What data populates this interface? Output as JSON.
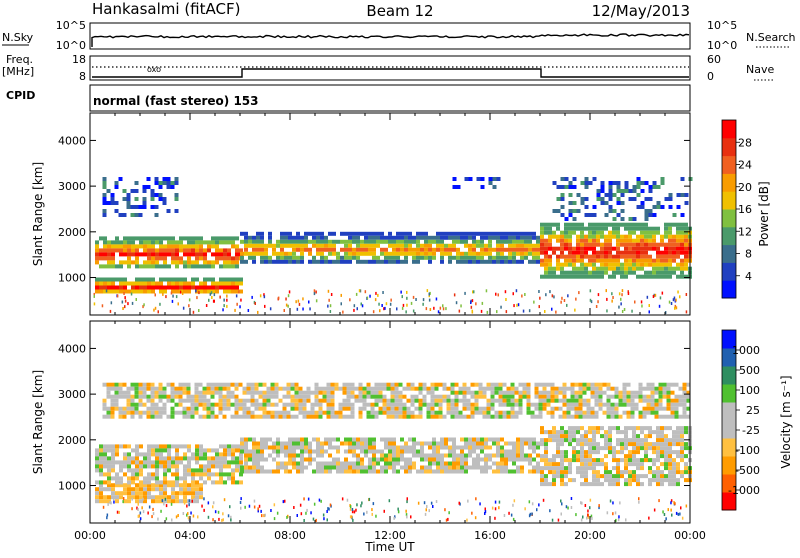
{
  "header": {
    "station": "Hankasalmi (fitACF)",
    "beam": "Beam 12",
    "date": "12/May/2013"
  },
  "top_panels": {
    "nsky_label": "N.Sky",
    "nsky_ticks": [
      "10^5",
      "10^0"
    ],
    "nsearch_label": "N.Search",
    "nsearch_ticks": [
      "10^5",
      "10^0"
    ],
    "freq_label": "Freq.",
    "freq_unit": "[MHz]",
    "freq_ticks": [
      "18",
      "8"
    ],
    "nave_label": "Nave",
    "nave_ticks": [
      "60",
      "0"
    ],
    "cpid_label": "CPID",
    "cpid_text": "normal (fast stereo) 153"
  },
  "chart_data": [
    {
      "type": "heatmap",
      "name": "power",
      "ylabel": "Slant Range [km]",
      "yticks": [
        "1000",
        "2000",
        "3000",
        "4000"
      ],
      "ylim": [
        180,
        4600
      ],
      "xlim": [
        0,
        24
      ],
      "colorbar": {
        "label": "Power [dB]",
        "ticks": [
          "4",
          "8",
          "12",
          "16",
          "20",
          "24",
          "28"
        ],
        "colors": [
          "#0010ff",
          "#2040c0",
          "#3a6e8c",
          "#4a9a6a",
          "#80c040",
          "#f0c000",
          "#f89c00",
          "#f06020",
          "#e83010",
          "#ff0000"
        ]
      },
      "echo_bands": [
        {
          "t0": 0.2,
          "t1": 6.0,
          "r0": 650,
          "r1": 1000,
          "level": "strong"
        },
        {
          "t0": 0.2,
          "t1": 6.0,
          "r0": 1200,
          "r1": 1900,
          "level": "strong"
        },
        {
          "t0": 6.0,
          "t1": 18.0,
          "r0": 1300,
          "r1": 2000,
          "level": "medium"
        },
        {
          "t0": 18.0,
          "t1": 24.0,
          "r0": 1050,
          "r1": 2200,
          "level": "strong"
        },
        {
          "t0": 0.5,
          "t1": 3.5,
          "r0": 2400,
          "r1": 3200,
          "level": "weak"
        },
        {
          "t0": 14.5,
          "t1": 16.5,
          "r0": 3000,
          "r1": 3200,
          "level": "weak"
        },
        {
          "t0": 18.5,
          "t1": 24.0,
          "r0": 2300,
          "r1": 3200,
          "level": "weak"
        }
      ]
    },
    {
      "type": "heatmap",
      "name": "velocity",
      "ylabel": "Slant Range [km]",
      "yticks": [
        "1000",
        "2000",
        "3000",
        "4000"
      ],
      "ylim": [
        180,
        4600
      ],
      "xlim": [
        0,
        24
      ],
      "xlabel": "Time UT",
      "xticks": [
        "00:00",
        "04:00",
        "08:00",
        "12:00",
        "16:00",
        "20:00",
        "00:00"
      ],
      "colorbar": {
        "label": "Velocity [m s⁻¹]",
        "ticks": [
          "-1000",
          "-500",
          "-100",
          "-25",
          "25",
          "100",
          "500",
          "1000"
        ],
        "colors": [
          "#ff0000",
          "#ff6000",
          "#ff9c00",
          "#ffc040",
          "#bebebe",
          "#bebebe",
          "#50c030",
          "#2e8e60",
          "#2060b0",
          "#0010ff"
        ]
      },
      "echo_bands": [
        {
          "t0": 0.2,
          "t1": 4.5,
          "r0": 650,
          "r1": 1050,
          "level": "negative"
        },
        {
          "t0": 0.2,
          "t1": 6.0,
          "r0": 1100,
          "r1": 1900,
          "level": "ground"
        },
        {
          "t0": 6.0,
          "t1": 18.0,
          "r0": 1300,
          "r1": 2050,
          "level": "ground"
        },
        {
          "t0": 18.0,
          "t1": 24.0,
          "r0": 1050,
          "r1": 2300,
          "level": "ground"
        },
        {
          "t0": 0.5,
          "t1": 24.0,
          "r0": 2500,
          "r1": 3250,
          "level": "ground"
        }
      ]
    }
  ]
}
